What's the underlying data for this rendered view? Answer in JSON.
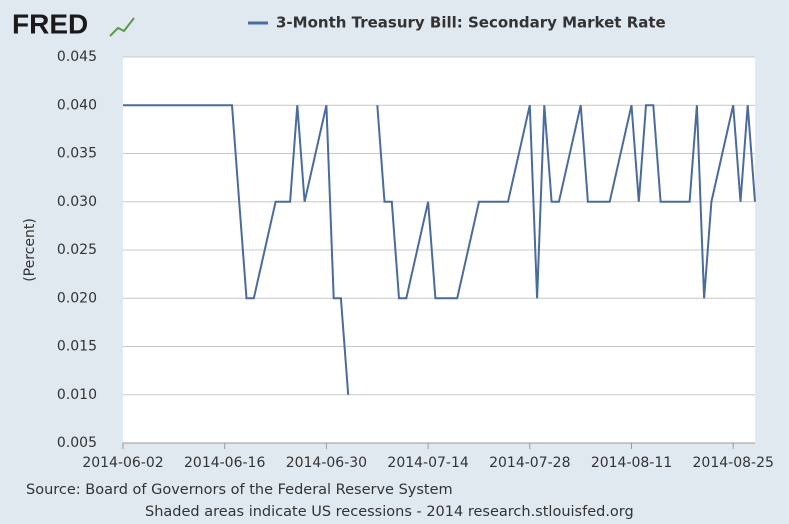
{
  "brand": "FRED",
  "chart_data": {
    "type": "line",
    "source": "Source: Board of Governors of the Federal Reserve System",
    "note": "Shaded areas indicate US recessions - 2014 research.stlouisfed.org",
    "y_label": "(Percent)",
    "x": [
      "2014-06-02",
      "2014-06-03",
      "2014-06-04",
      "2014-06-05",
      "2014-06-06",
      "2014-06-09",
      "2014-06-10",
      "2014-06-11",
      "2014-06-12",
      "2014-06-13",
      "2014-06-16",
      "2014-06-17",
      "2014-06-18",
      "2014-06-19",
      "2014-06-20",
      "2014-06-23",
      "2014-06-24",
      "2014-06-25",
      "2014-06-26",
      "2014-06-27",
      "2014-06-30",
      "2014-07-01",
      "2014-07-02",
      "2014-07-03",
      "2014-07-04",
      "2014-07-07",
      "2014-07-08",
      "2014-07-09",
      "2014-07-10",
      "2014-07-11",
      "2014-07-14",
      "2014-07-15",
      "2014-07-16",
      "2014-07-17",
      "2014-07-18",
      "2014-07-21",
      "2014-07-22",
      "2014-07-23",
      "2014-07-24",
      "2014-07-25",
      "2014-07-28",
      "2014-07-29",
      "2014-07-30",
      "2014-07-31",
      "2014-08-01",
      "2014-08-04",
      "2014-08-05",
      "2014-08-06",
      "2014-08-07",
      "2014-08-08",
      "2014-08-11",
      "2014-08-12",
      "2014-08-13",
      "2014-08-14",
      "2014-08-15",
      "2014-08-18",
      "2014-08-19",
      "2014-08-20",
      "2014-08-21",
      "2014-08-22",
      "2014-08-25",
      "2014-08-26",
      "2014-08-27",
      "2014-08-28"
    ],
    "series": [
      {
        "name": "3-Month Treasury Bill: Secondary Market Rate",
        "color": "#4a6b9d",
        "values": [
          0.04,
          0.04,
          0.04,
          0.04,
          0.04,
          0.04,
          0.04,
          0.04,
          0.04,
          0.04,
          0.04,
          0.04,
          0.03,
          0.02,
          0.02,
          0.03,
          0.03,
          0.03,
          0.04,
          0.03,
          0.04,
          0.02,
          0.02,
          0.01,
          null,
          0.04,
          0.03,
          0.03,
          0.02,
          0.02,
          0.03,
          0.02,
          0.02,
          0.02,
          0.02,
          0.03,
          0.03,
          0.03,
          0.03,
          0.03,
          0.04,
          0.02,
          0.04,
          0.03,
          0.03,
          0.04,
          0.03,
          0.03,
          0.03,
          0.03,
          0.04,
          0.03,
          0.04,
          0.04,
          0.03,
          0.03,
          0.03,
          0.04,
          0.02,
          0.03,
          0.04,
          0.03,
          0.04,
          0.03
        ]
      }
    ],
    "xlim": [
      "2014-06-02",
      "2014-08-28"
    ],
    "xticks": [
      "2014-06-02",
      "2014-06-16",
      "2014-06-30",
      "2014-07-14",
      "2014-07-28",
      "2014-08-11",
      "2014-08-25"
    ],
    "ylim": [
      0.005,
      0.045
    ],
    "yticks": [
      0.005,
      {
        "value": 0.01,
        "label": "0.010"
      },
      0.015,
      {
        "value": 0.02,
        "label": "0.020"
      },
      0.025,
      {
        "value": 0.03,
        "label": "0.030"
      },
      0.035,
      {
        "value": 0.04,
        "label": "0.040"
      },
      0.045
    ],
    "grid": true
  }
}
